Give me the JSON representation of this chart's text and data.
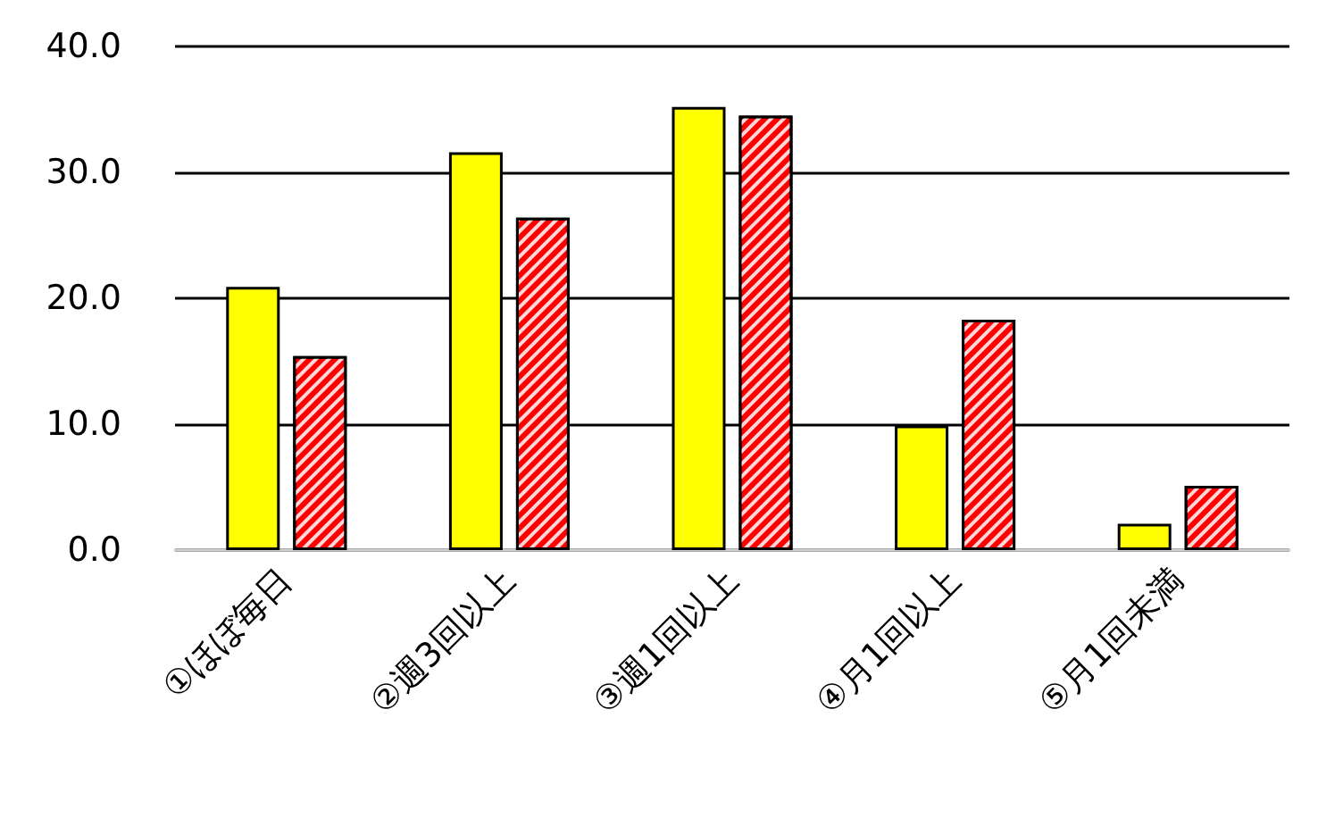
{
  "chart_data": {
    "type": "bar",
    "categories": [
      "①ほぼ毎日",
      "②週3回以上",
      "③週1回以上",
      "④月1回以上",
      "⑤月1回未満"
    ],
    "series": [
      {
        "color": "#ffff00",
        "values": [
          20.9,
          31.6,
          35.2,
          9.9,
          2.1
        ]
      },
      {
        "color": "#ff0000",
        "values": [
          15.4,
          26.4,
          34.5,
          18.3,
          5.1
        ]
      }
    ],
    "ylim": [
      0,
      40
    ],
    "yticks": [
      {
        "value": 0,
        "label": "0.0"
      },
      {
        "value": 10,
        "label": "10.0"
      },
      {
        "value": 20,
        "label": "20.0"
      },
      {
        "value": 30,
        "label": "30.0"
      },
      {
        "value": 40,
        "label": "40.0"
      }
    ],
    "grid": "y"
  }
}
